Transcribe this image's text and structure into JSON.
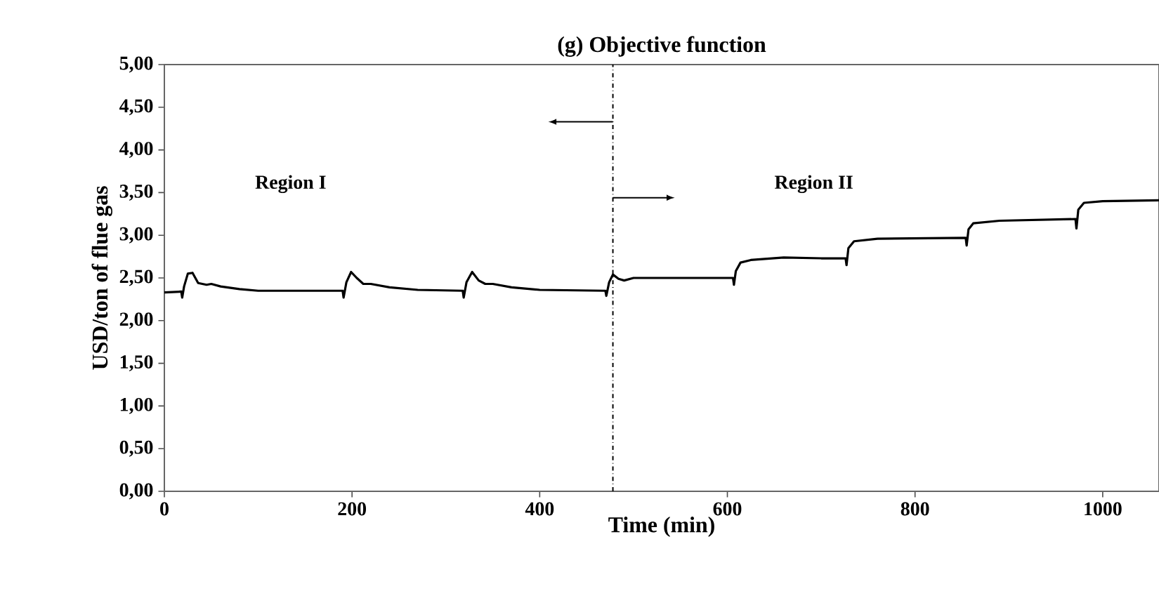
{
  "chart_data": {
    "type": "line",
    "title": "(g) Objective function",
    "xlabel": "Time (min)",
    "ylabel": "USD/ton of flue gas",
    "xlim": [
      0,
      1060
    ],
    "xticks": [
      0,
      200,
      400,
      600,
      800,
      1000
    ],
    "ylim": [
      0,
      5
    ],
    "yticks": [
      {
        "value": 0,
        "label": "0,00"
      },
      {
        "value": 0.5,
        "label": "0,50"
      },
      {
        "value": 1,
        "label": "1,00"
      },
      {
        "value": 1.5,
        "label": "1,50"
      },
      {
        "value": 2,
        "label": "2,00"
      },
      {
        "value": 2.5,
        "label": "2,50"
      },
      {
        "value": 3,
        "label": "3,00"
      },
      {
        "value": 3.5,
        "label": "3,50"
      },
      {
        "value": 4,
        "label": "4,00"
      },
      {
        "value": 4.5,
        "label": "4,50"
      },
      {
        "value": 5,
        "label": "5,00"
      }
    ],
    "marker": "none",
    "line_style": "solid",
    "series": [
      {
        "color": "#000000",
        "x": [
          0,
          18,
          19,
          21,
          25,
          30,
          36,
          45,
          50,
          60,
          80,
          100,
          190,
          191,
          194,
          199,
          205,
          212,
          220,
          240,
          270,
          318,
          319,
          322,
          328,
          335,
          342,
          350,
          370,
          400,
          470,
          471,
          474,
          478,
          484,
          490,
          500,
          606,
          607,
          609,
          614,
          625,
          660,
          700,
          726,
          727,
          729,
          735,
          760,
          854,
          855,
          857,
          862,
          890,
          971,
          972,
          974,
          980,
          1000,
          1060
        ],
        "values": [
          2.33,
          2.34,
          2.27,
          2.4,
          2.55,
          2.56,
          2.44,
          2.42,
          2.43,
          2.4,
          2.37,
          2.35,
          2.35,
          2.27,
          2.45,
          2.57,
          2.5,
          2.43,
          2.43,
          2.39,
          2.36,
          2.35,
          2.27,
          2.45,
          2.57,
          2.47,
          2.43,
          2.43,
          2.39,
          2.36,
          2.35,
          2.29,
          2.45,
          2.54,
          2.49,
          2.47,
          2.5,
          2.5,
          2.42,
          2.58,
          2.68,
          2.71,
          2.74,
          2.73,
          2.73,
          2.65,
          2.85,
          2.93,
          2.96,
          2.97,
          2.88,
          3.07,
          3.14,
          3.17,
          3.19,
          3.08,
          3.3,
          3.38,
          3.4,
          3.41
        ]
      }
    ],
    "ref_lines": [
      {
        "axis": "x",
        "value": 478,
        "line_style": "dashdotted",
        "color": "#000000"
      }
    ],
    "annotations": [
      "Region I",
      "Region II"
    ]
  }
}
